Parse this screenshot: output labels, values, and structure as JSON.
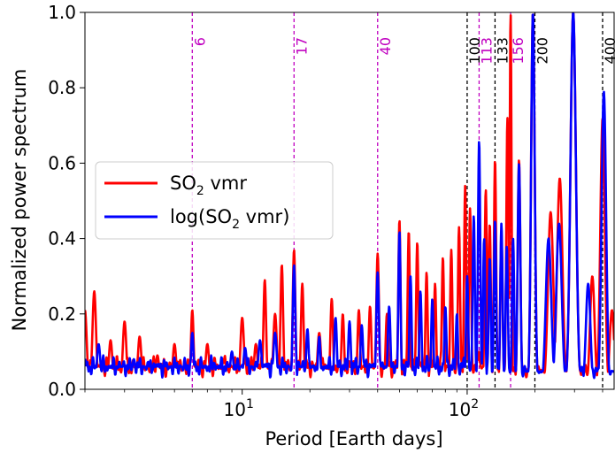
{
  "chart_data": {
    "type": "line",
    "xscale": "log",
    "xlim": [
      2,
      450
    ],
    "ylim": [
      0,
      1.0
    ],
    "xlabel": "Period [Earth days]",
    "ylabel": "Normalized power spectrum",
    "x_ticks": [
      {
        "value": 10,
        "base": "10",
        "exp": "1"
      },
      {
        "value": 100,
        "base": "10",
        "exp": "2"
      }
    ],
    "y_ticks": [
      {
        "value": 0.0,
        "label": "0.0"
      },
      {
        "value": 0.2,
        "label": "0.2"
      },
      {
        "value": 0.4,
        "label": "0.4"
      },
      {
        "value": 0.6,
        "label": "0.6"
      },
      {
        "value": 0.8,
        "label": "0.8"
      },
      {
        "value": 1.0,
        "label": "1.0"
      }
    ],
    "legend": {
      "placement": "center-left",
      "entries": [
        {
          "name_main": "SO",
          "name_sub": "2",
          "name_tail": " vmr",
          "color": "#ff0000"
        },
        {
          "name_main": "log(SO",
          "name_sub": "2",
          "name_tail": " vmr)",
          "color": "#0000ff"
        }
      ]
    },
    "reference_lines": [
      {
        "period": 6,
        "label": "6",
        "color": "#c000c0"
      },
      {
        "period": 17,
        "label": "17",
        "color": "#c000c0"
      },
      {
        "period": 40,
        "label": "40",
        "color": "#c000c0"
      },
      {
        "period": 100,
        "label": "100",
        "color": "#000000"
      },
      {
        "period": 113,
        "label": "113",
        "color": "#c000c0"
      },
      {
        "period": 133,
        "label": "133",
        "color": "#000000"
      },
      {
        "period": 156,
        "label": "156",
        "color": "#c000c0"
      },
      {
        "period": 200,
        "label": "200",
        "color": "#000000"
      },
      {
        "period": 400,
        "label": "400",
        "color": "#000000"
      }
    ],
    "series": [
      {
        "name": "SO2 vmr",
        "color": "#ff0000",
        "background_peaks": [
          {
            "x": 2.0,
            "y": 0.21,
            "w": 0.008
          },
          {
            "x": 2.2,
            "y": 0.26,
            "w": 0.008
          },
          {
            "x": 2.6,
            "y": 0.13,
            "w": 0.008
          },
          {
            "x": 3.0,
            "y": 0.18,
            "w": 0.008
          },
          {
            "x": 3.5,
            "y": 0.14,
            "w": 0.008
          },
          {
            "x": 4.2,
            "y": 0.09,
            "w": 0.008
          },
          {
            "x": 5.0,
            "y": 0.12,
            "w": 0.008
          },
          {
            "x": 6.0,
            "y": 0.21,
            "w": 0.006
          },
          {
            "x": 7.0,
            "y": 0.12,
            "w": 0.008
          },
          {
            "x": 8.2,
            "y": 0.08,
            "w": 0.008
          },
          {
            "x": 10.0,
            "y": 0.19,
            "w": 0.008
          },
          {
            "x": 11.5,
            "y": 0.12,
            "w": 0.008
          },
          {
            "x": 12.6,
            "y": 0.29,
            "w": 0.006
          },
          {
            "x": 14.0,
            "y": 0.2,
            "w": 0.008
          },
          {
            "x": 15.0,
            "y": 0.33,
            "w": 0.006
          },
          {
            "x": 17.0,
            "y": 0.37,
            "w": 0.006
          },
          {
            "x": 18.5,
            "y": 0.28,
            "w": 0.006
          },
          {
            "x": 22.0,
            "y": 0.15,
            "w": 0.008
          },
          {
            "x": 25.0,
            "y": 0.24,
            "w": 0.006
          },
          {
            "x": 28.0,
            "y": 0.2,
            "w": 0.006
          },
          {
            "x": 33.0,
            "y": 0.21,
            "w": 0.006
          },
          {
            "x": 37.0,
            "y": 0.22,
            "w": 0.006
          },
          {
            "x": 40.0,
            "y": 0.36,
            "w": 0.006
          },
          {
            "x": 44.0,
            "y": 0.2,
            "w": 0.006
          },
          {
            "x": 50.0,
            "y": 0.45,
            "w": 0.005
          },
          {
            "x": 55.0,
            "y": 0.42,
            "w": 0.005
          },
          {
            "x": 60.0,
            "y": 0.39,
            "w": 0.005
          },
          {
            "x": 66.0,
            "y": 0.31,
            "w": 0.005
          },
          {
            "x": 72.0,
            "y": 0.28,
            "w": 0.005
          },
          {
            "x": 78.0,
            "y": 0.35,
            "w": 0.005
          },
          {
            "x": 85.0,
            "y": 0.37,
            "w": 0.005
          },
          {
            "x": 92.0,
            "y": 0.43,
            "w": 0.005
          },
          {
            "x": 98.0,
            "y": 0.54,
            "w": 0.005
          },
          {
            "x": 103.0,
            "y": 0.48,
            "w": 0.005
          },
          {
            "x": 113.0,
            "y": 0.1,
            "w": 0.006
          },
          {
            "x": 121.0,
            "y": 0.53,
            "w": 0.005
          },
          {
            "x": 126.0,
            "y": 0.44,
            "w": 0.005
          },
          {
            "x": 133.0,
            "y": 0.61,
            "w": 0.005
          },
          {
            "x": 142.0,
            "y": 0.42,
            "w": 0.005
          },
          {
            "x": 151.0,
            "y": 0.72,
            "w": 0.005
          },
          {
            "x": 156.0,
            "y": 1.0,
            "w": 0.004
          },
          {
            "x": 170.0,
            "y": 0.61,
            "w": 0.006
          },
          {
            "x": 196.0,
            "y": 1.0,
            "w": 0.008
          },
          {
            "x": 235.0,
            "y": 0.47,
            "w": 0.012
          },
          {
            "x": 258.0,
            "y": 0.56,
            "w": 0.012
          },
          {
            "x": 296.0,
            "y": 1.0,
            "w": 0.012
          },
          {
            "x": 360.0,
            "y": 0.3,
            "w": 0.01
          },
          {
            "x": 400.0,
            "y": 0.72,
            "w": 0.01
          },
          {
            "x": 440.0,
            "y": 0.21,
            "w": 0.01
          }
        ]
      },
      {
        "name": "log(SO2 vmr)",
        "color": "#0000ff",
        "background_peaks": [
          {
            "x": 2.0,
            "y": 0.08,
            "w": 0.008
          },
          {
            "x": 2.3,
            "y": 0.12,
            "w": 0.008
          },
          {
            "x": 2.8,
            "y": 0.06,
            "w": 0.008
          },
          {
            "x": 3.3,
            "y": 0.08,
            "w": 0.008
          },
          {
            "x": 4.0,
            "y": 0.05,
            "w": 0.008
          },
          {
            "x": 5.0,
            "y": 0.05,
            "w": 0.008
          },
          {
            "x": 6.0,
            "y": 0.15,
            "w": 0.006
          },
          {
            "x": 7.5,
            "y": 0.07,
            "w": 0.008
          },
          {
            "x": 9.0,
            "y": 0.1,
            "w": 0.008
          },
          {
            "x": 10.3,
            "y": 0.11,
            "w": 0.008
          },
          {
            "x": 12.0,
            "y": 0.13,
            "w": 0.008
          },
          {
            "x": 14.0,
            "y": 0.15,
            "w": 0.008
          },
          {
            "x": 17.0,
            "y": 0.33,
            "w": 0.006
          },
          {
            "x": 19.5,
            "y": 0.16,
            "w": 0.006
          },
          {
            "x": 22.0,
            "y": 0.14,
            "w": 0.006
          },
          {
            "x": 26.0,
            "y": 0.19,
            "w": 0.006
          },
          {
            "x": 30.0,
            "y": 0.18,
            "w": 0.006
          },
          {
            "x": 34.0,
            "y": 0.17,
            "w": 0.006
          },
          {
            "x": 40.0,
            "y": 0.31,
            "w": 0.006
          },
          {
            "x": 45.0,
            "y": 0.22,
            "w": 0.006
          },
          {
            "x": 50.0,
            "y": 0.42,
            "w": 0.005
          },
          {
            "x": 56.0,
            "y": 0.3,
            "w": 0.005
          },
          {
            "x": 62.0,
            "y": 0.26,
            "w": 0.005
          },
          {
            "x": 70.0,
            "y": 0.24,
            "w": 0.005
          },
          {
            "x": 80.0,
            "y": 0.22,
            "w": 0.005
          },
          {
            "x": 90.0,
            "y": 0.2,
            "w": 0.005
          },
          {
            "x": 100.0,
            "y": 0.3,
            "w": 0.005
          },
          {
            "x": 107.0,
            "y": 0.46,
            "w": 0.005
          },
          {
            "x": 113.0,
            "y": 0.66,
            "w": 0.005
          },
          {
            "x": 119.0,
            "y": 0.4,
            "w": 0.005
          },
          {
            "x": 126.0,
            "y": 0.35,
            "w": 0.005
          },
          {
            "x": 133.0,
            "y": 0.45,
            "w": 0.005
          },
          {
            "x": 142.0,
            "y": 0.44,
            "w": 0.005
          },
          {
            "x": 150.0,
            "y": 0.38,
            "w": 0.005
          },
          {
            "x": 160.0,
            "y": 0.4,
            "w": 0.005
          },
          {
            "x": 170.0,
            "y": 0.6,
            "w": 0.006
          },
          {
            "x": 196.0,
            "y": 1.0,
            "w": 0.008
          },
          {
            "x": 230.0,
            "y": 0.4,
            "w": 0.012
          },
          {
            "x": 256.0,
            "y": 0.44,
            "w": 0.012
          },
          {
            "x": 296.0,
            "y": 1.0,
            "w": 0.012
          },
          {
            "x": 345.0,
            "y": 0.28,
            "w": 0.01
          },
          {
            "x": 405.0,
            "y": 0.79,
            "w": 0.01
          }
        ]
      }
    ]
  }
}
